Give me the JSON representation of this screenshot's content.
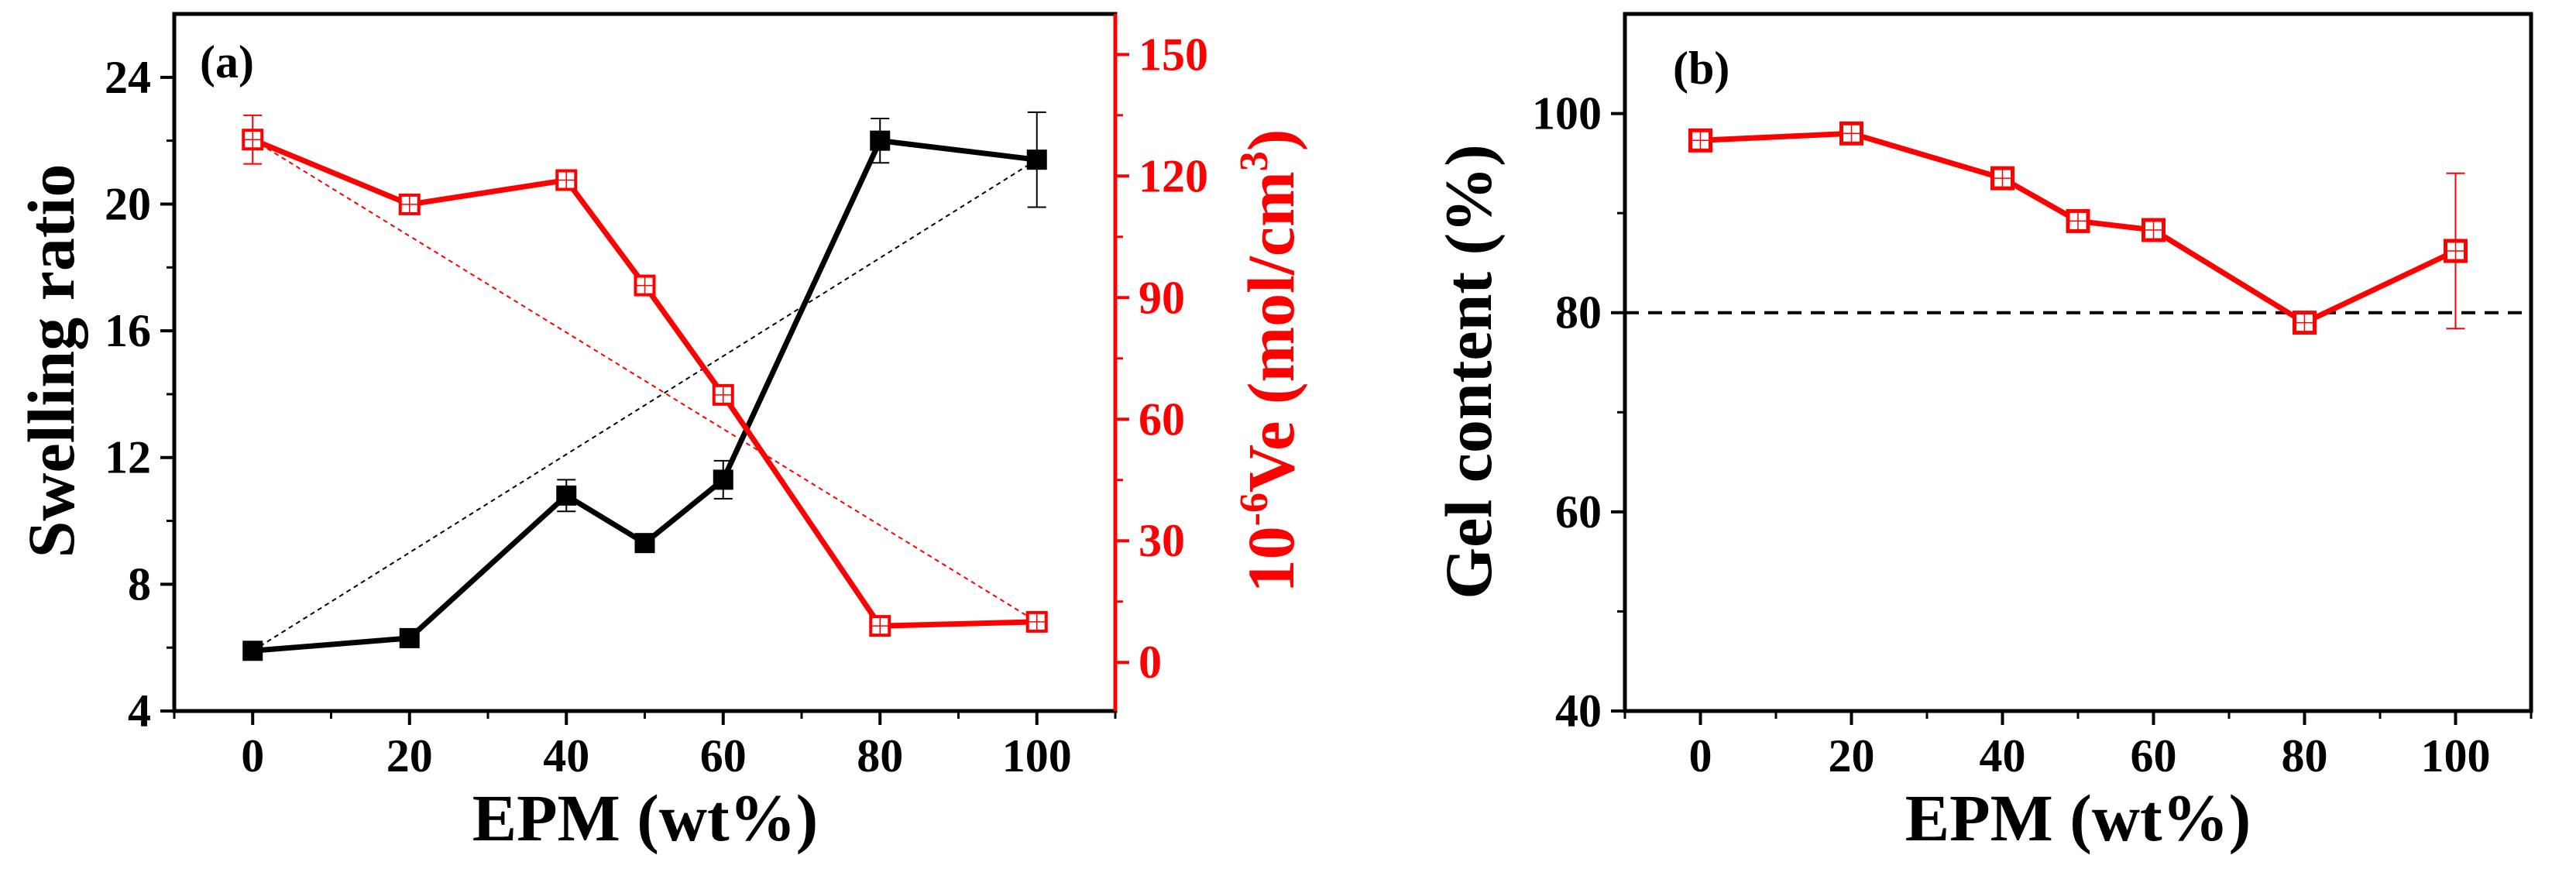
{
  "chart_data": [
    {
      "panel": "(a)",
      "type": "line",
      "xlabel": "EPM (wt%)",
      "ylabel_left": "Swelling ratio",
      "ylabel_right_prefix": "10",
      "ylabel_right_exp": "-6",
      "ylabel_right_main": "Ve (mol/cm",
      "ylabel_right_unit_exp": "3",
      "ylabel_right_close": ")",
      "xlim": [
        -10,
        110
      ],
      "xticks": [
        0,
        20,
        40,
        60,
        80,
        100
      ],
      "ylim_left": [
        4,
        26
      ],
      "yticks_left": [
        4,
        8,
        12,
        16,
        20,
        24
      ],
      "ylim_right": [
        -12,
        160
      ],
      "yticks_right": [
        0,
        30,
        60,
        90,
        120,
        150
      ],
      "series": [
        {
          "name": "Swelling ratio",
          "axis": "left",
          "color": "#000000",
          "marker": "filled-square",
          "x": [
            0,
            20,
            40,
            50,
            60,
            80,
            100
          ],
          "values": [
            5.9,
            6.3,
            10.8,
            9.3,
            11.3,
            22.0,
            21.4
          ],
          "err": [
            0,
            0,
            0.5,
            0,
            0.6,
            0.7,
            1.5
          ]
        },
        {
          "name": "10-6Ve",
          "axis": "right",
          "color": "#ff0000",
          "marker": "open-square",
          "x": [
            0,
            20,
            40,
            50,
            60,
            80,
            100
          ],
          "values": [
            129,
            113,
            119,
            93,
            66,
            9,
            10
          ],
          "err": [
            6,
            0,
            0,
            0,
            0,
            0,
            0
          ]
        }
      ],
      "trend_lines": [
        {
          "name": "swelling-trend",
          "axis": "left",
          "color": "#000000",
          "x": [
            0,
            100
          ],
          "values": [
            5.9,
            21.4
          ]
        },
        {
          "name": "ve-trend",
          "axis": "right",
          "color": "#ff0000",
          "x": [
            0,
            100
          ],
          "values": [
            129,
            10
          ]
        }
      ]
    },
    {
      "panel": "(b)",
      "type": "line",
      "xlabel": "EPM (wt%)",
      "ylabel": "Gel content (%)",
      "xlim": [
        -10,
        110
      ],
      "xticks": [
        0,
        20,
        40,
        60,
        80,
        100
      ],
      "ylim": [
        40,
        110
      ],
      "yticks": [
        40,
        60,
        80,
        100
      ],
      "series": [
        {
          "name": "Gel content",
          "color": "#ff0000",
          "marker": "open-square",
          "x": [
            0,
            20,
            40,
            50,
            60,
            80,
            100
          ],
          "values": [
            97.3,
            98.0,
            93.5,
            89.2,
            88.3,
            79.0,
            86.2
          ],
          "err": [
            0,
            0,
            0,
            0,
            0,
            0,
            7.8
          ]
        }
      ],
      "reference_line": {
        "name": "80% threshold",
        "value": 80,
        "color": "#000000"
      }
    }
  ]
}
